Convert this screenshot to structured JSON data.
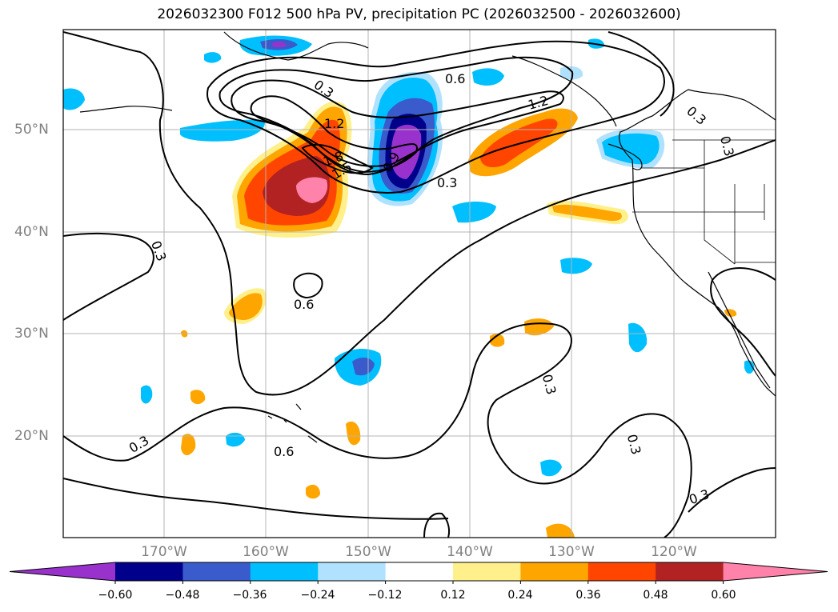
{
  "title": "2026032300 F012 500 hPa PV, precipitation PC (2026032500 - 2026032600)",
  "lat_labels": [
    "50°N",
    "40°N",
    "30°N",
    "20°N"
  ],
  "lon_labels": [
    "170°W",
    "160°W",
    "150°W",
    "140°W",
    "130°W",
    "120°W"
  ],
  "colorbar": {
    "ticks": [
      "−0.60",
      "−0.48",
      "−0.36",
      "−0.24",
      "−0.12",
      "0.12",
      "0.24",
      "0.36",
      "0.48",
      "0.60"
    ],
    "colors": [
      "#9932cc",
      "#00008b",
      "#3a5bcc",
      "#00bfff",
      "#b0e2ff",
      "#ffffff",
      "#fff08c",
      "#ffa500",
      "#ff4500",
      "#b22222",
      "#ff82ab"
    ]
  },
  "contour_labels": [
    "0.3",
    "0.6",
    "1.2",
    "1.5",
    "1.8",
    "0.9",
    "0.3",
    "0.6",
    "1.2",
    "0.3",
    "0.3",
    "0.6",
    "0.3",
    "0.3",
    "0.3",
    "0.3",
    "0.3",
    "0.3",
    "0.3"
  ]
}
